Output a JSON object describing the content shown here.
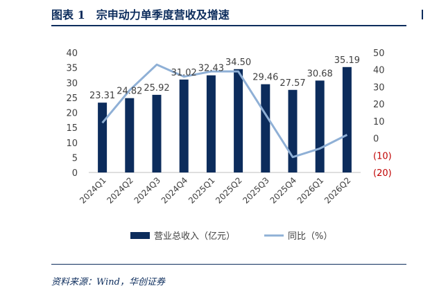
{
  "figure": {
    "title": "图表 1　宗申动力单季度营收及增速",
    "source": "资料来源：Wind，华创证券"
  },
  "colors": {
    "bar": "#0c2c5c",
    "line": "#8fb0d6",
    "negative_tick": "#c00000",
    "rule": "#0c2c5c"
  },
  "chart_data": {
    "type": "bar",
    "categories": [
      "2024Q1",
      "2024Q2",
      "2024Q3",
      "2024Q4",
      "2025Q1",
      "2025Q2",
      "2025Q3",
      "2025Q4",
      "2026Q1",
      "2026Q2"
    ],
    "series": [
      {
        "name": "营业总收入（亿元）",
        "type": "bar",
        "axis": "left",
        "values": [
          23.31,
          24.82,
          25.92,
          31.02,
          32.43,
          34.5,
          29.46,
          27.57,
          30.68,
          35.19
        ]
      },
      {
        "name": "同比（%）",
        "type": "line",
        "axis": "right",
        "values": [
          9,
          28,
          43,
          36,
          39,
          39,
          14,
          -11,
          -6,
          2
        ]
      }
    ],
    "data_labels": [
      "23.31",
      "24.82",
      "25.92",
      "31.02",
      "32.43",
      "34.50",
      "29.46",
      "27.57",
      "30.68",
      "35.19"
    ],
    "y_left": {
      "ylim": [
        0,
        40
      ],
      "ticks": [
        "0",
        "5",
        "10",
        "15",
        "20",
        "25",
        "30",
        "35",
        "40"
      ]
    },
    "y_right": {
      "ylim": [
        -20,
        50
      ],
      "ticks": [
        "(20)",
        "(10)",
        "0",
        "10",
        "20",
        "30",
        "40",
        "50"
      ]
    },
    "legend": {
      "position": "bottom",
      "items": [
        "营业总收入（亿元）",
        "同比（%）"
      ]
    },
    "grid": false
  }
}
